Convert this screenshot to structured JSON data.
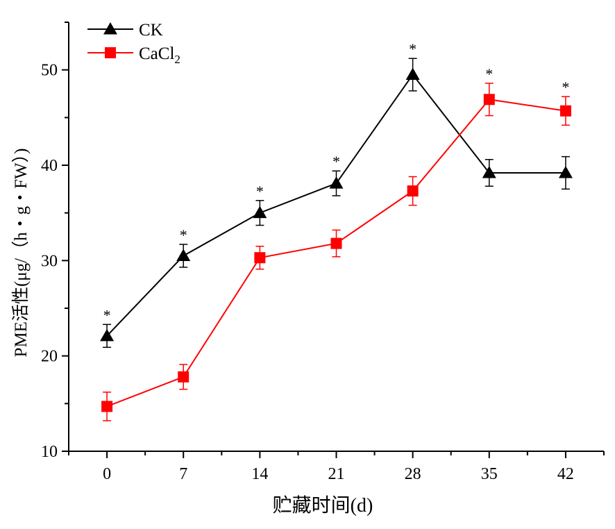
{
  "chart_data": {
    "type": "line",
    "xlabel": "贮藏时间(d)",
    "ylabel": "PME活性(μg/（h・g・FW）)",
    "x": [
      0,
      7,
      14,
      21,
      28,
      35,
      42
    ],
    "xlim": [
      -3.5,
      45.5
    ],
    "ylim": [
      10,
      55
    ],
    "yticks": [
      10,
      20,
      30,
      40,
      50
    ],
    "grid": false,
    "legend_position": "top-left",
    "series": [
      {
        "name": "CK",
        "marker": "triangle",
        "color": "#000000",
        "values": [
          22.1,
          30.5,
          35.0,
          38.1,
          49.5,
          39.2,
          39.2
        ],
        "errors": [
          1.2,
          1.2,
          1.3,
          1.3,
          1.7,
          1.4,
          1.7
        ],
        "significance": [
          "*",
          "*",
          "*",
          "*",
          "*",
          "",
          ""
        ]
      },
      {
        "name": "CaCl2",
        "marker": "square",
        "color": "#ff0000",
        "values": [
          14.7,
          17.8,
          30.3,
          31.8,
          37.3,
          46.9,
          45.7
        ],
        "errors": [
          1.5,
          1.3,
          1.2,
          1.4,
          1.5,
          1.7,
          1.5
        ],
        "significance": [
          "",
          "",
          "",
          "",
          "",
          "*",
          "*"
        ]
      }
    ]
  }
}
